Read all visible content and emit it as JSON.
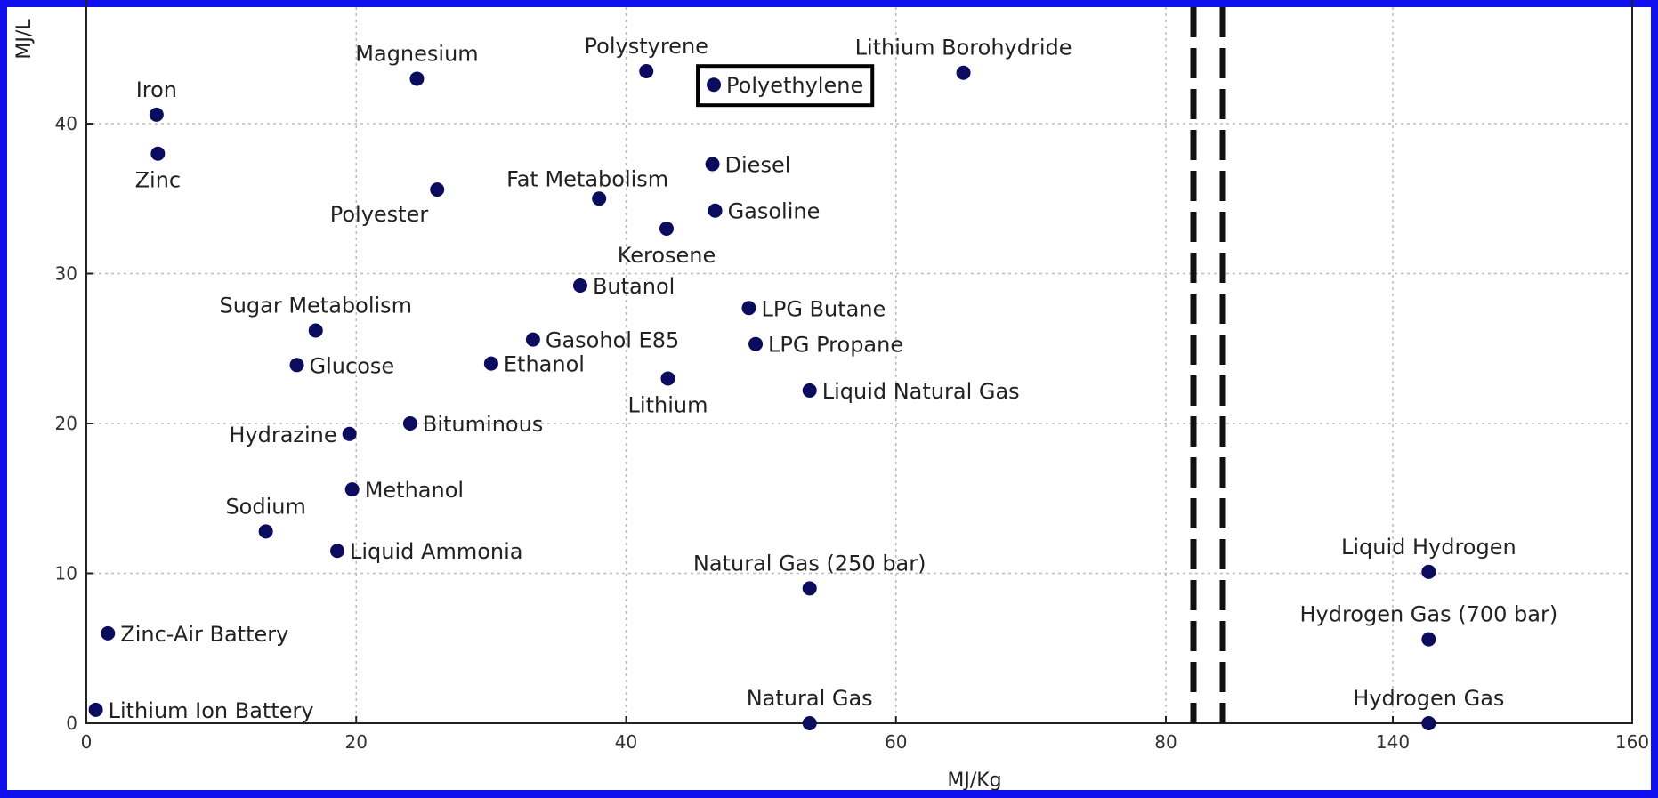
{
  "chart_data": {
    "type": "scatter",
    "xlabel": "MJ/Kg",
    "ylabel": "MJ/L",
    "xlim": [
      0,
      160
    ],
    "ylim": [
      0,
      48
    ],
    "x_axis_break": {
      "from": 85,
      "to": 130,
      "note": "axis broken between 80 and 140"
    },
    "x_ticks": [
      {
        "value": 0,
        "label": "0"
      },
      {
        "value": 20,
        "label": "20"
      },
      {
        "value": 40,
        "label": "40"
      },
      {
        "value": 60,
        "label": "60"
      },
      {
        "value": 80,
        "label": "80"
      },
      {
        "value": 140,
        "label": "140"
      },
      {
        "value": 160,
        "label": "160"
      }
    ],
    "y_ticks": [
      {
        "value": 0,
        "label": "0"
      },
      {
        "value": 10,
        "label": "10"
      },
      {
        "value": 20,
        "label": "20"
      },
      {
        "value": 30,
        "label": "30"
      },
      {
        "value": 40,
        "label": "40"
      }
    ],
    "grid": true,
    "marker_color": "#0c0c5e",
    "highlighted": "Polyethylene",
    "points": [
      {
        "label": "Iron",
        "x": 5.2,
        "y": 40.6,
        "label_pos": "above"
      },
      {
        "label": "Zinc",
        "x": 5.3,
        "y": 38.0,
        "label_pos": "below"
      },
      {
        "label": "Magnesium",
        "x": 24.5,
        "y": 43.0,
        "label_pos": "above"
      },
      {
        "label": "Polystyrene",
        "x": 41.5,
        "y": 43.5,
        "label_pos": "above"
      },
      {
        "label": "Polyethylene",
        "x": 46.5,
        "y": 42.6,
        "label_pos": "right"
      },
      {
        "label": "Lithium Borohydride",
        "x": 65.0,
        "y": 43.4,
        "label_pos": "above"
      },
      {
        "label": "Polyester",
        "x": 26.0,
        "y": 35.6,
        "label_pos": "below-left"
      },
      {
        "label": "Fat Metabolism",
        "x": 38.0,
        "y": 35.0,
        "label_pos": "above-left"
      },
      {
        "label": "Diesel",
        "x": 46.4,
        "y": 37.3,
        "label_pos": "right"
      },
      {
        "label": "Gasoline",
        "x": 46.6,
        "y": 34.2,
        "label_pos": "right"
      },
      {
        "label": "Kerosene",
        "x": 43.0,
        "y": 33.0,
        "label_pos": "below"
      },
      {
        "label": "Butanol",
        "x": 36.6,
        "y": 29.2,
        "label_pos": "right"
      },
      {
        "label": "Sugar Metabolism",
        "x": 17.0,
        "y": 26.2,
        "label_pos": "above"
      },
      {
        "label": "Glucose",
        "x": 15.6,
        "y": 23.9,
        "label_pos": "right"
      },
      {
        "label": "Gasohol E85",
        "x": 33.1,
        "y": 25.6,
        "label_pos": "right"
      },
      {
        "label": "Ethanol",
        "x": 30.0,
        "y": 24.0,
        "label_pos": "right"
      },
      {
        "label": "LPG Butane",
        "x": 49.1,
        "y": 27.7,
        "label_pos": "right"
      },
      {
        "label": "LPG Propane",
        "x": 49.6,
        "y": 25.3,
        "label_pos": "right"
      },
      {
        "label": "Lithium",
        "x": 43.1,
        "y": 23.0,
        "label_pos": "below"
      },
      {
        "label": "Liquid Natural Gas",
        "x": 53.6,
        "y": 22.2,
        "label_pos": "right"
      },
      {
        "label": "Hydrazine",
        "x": 19.5,
        "y": 19.3,
        "label_pos": "left"
      },
      {
        "label": "Bituminous",
        "x": 24.0,
        "y": 20.0,
        "label_pos": "right"
      },
      {
        "label": "Methanol",
        "x": 19.7,
        "y": 15.6,
        "label_pos": "right"
      },
      {
        "label": "Sodium",
        "x": 13.3,
        "y": 12.8,
        "label_pos": "above"
      },
      {
        "label": "Liquid Ammonia",
        "x": 18.6,
        "y": 11.5,
        "label_pos": "right"
      },
      {
        "label": "Natural Gas (250 bar)",
        "x": 53.6,
        "y": 9.0,
        "label_pos": "above"
      },
      {
        "label": "Zinc-Air Battery",
        "x": 1.6,
        "y": 6.0,
        "label_pos": "right"
      },
      {
        "label": "Lithium Ion Battery",
        "x": 0.7,
        "y": 0.9,
        "label_pos": "right"
      },
      {
        "label": "Natural Gas",
        "x": 53.6,
        "y": 0.0,
        "label_pos": "above"
      },
      {
        "label": "Liquid Hydrogen",
        "x": 143.0,
        "y": 10.1,
        "label_pos": "above"
      },
      {
        "label": "Hydrogen Gas (700 bar)",
        "x": 143.0,
        "y": 5.6,
        "label_pos": "above"
      },
      {
        "label": "Hydrogen Gas",
        "x": 143.0,
        "y": 0.0,
        "label_pos": "above"
      }
    ]
  }
}
